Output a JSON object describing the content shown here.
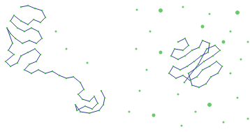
{
  "chart_data": {
    "type": "line",
    "xlim": [
      0,
      358
    ],
    "ylim": [
      0,
      189
    ],
    "grid": false,
    "tick_labels": false,
    "series": [
      {
        "type": "line",
        "color": "#2b3a9c",
        "marker": "circle",
        "line_style": "solid",
        "x": [
          30,
          40,
          50,
          60,
          65,
          58,
          48,
          40,
          30,
          20,
          15,
          25,
          35,
          45,
          55,
          60,
          52,
          42,
          32,
          22,
          15,
          10,
          18,
          12,
          20,
          8,
          15,
          25,
          30,
          40,
          50,
          58,
          52,
          42,
          35,
          45,
          55,
          65,
          75,
          85,
          95,
          105,
          115,
          120,
          112,
          118,
          128,
          135,
          140,
          132,
          122,
          110,
          108,
          115,
          128,
          142,
          148,
          150,
          145
        ],
        "values": [
          179,
          181,
          177,
          174,
          164,
          157,
          161,
          154,
          159,
          167,
          159,
          149,
          144,
          149,
          144,
          134,
          127,
          131,
          127,
          134,
          141,
          149,
          127,
          117,
          111,
          101,
          94,
          99,
          109,
          114,
          119,
          111,
          101,
          97,
          89,
          84,
          89,
          84,
          87,
          81,
          77,
          79,
          71,
          61,
          54,
          47,
          44,
          51,
          41,
          33,
          37,
          31,
          39,
          29,
          27,
          31,
          39,
          49,
          59
        ],
        "colors": [
          "#3fbf3f",
          "#3fbf3f",
          "#3fbf3f",
          "#3fbf3f",
          "#3fbf3f",
          "#3fbf3f",
          "#3fbf3f",
          "#3fbf3f",
          "#3fbf3f",
          "#3fbf3f",
          "#3fbf3f",
          "#3fbf3f",
          "#3fbf3f",
          "#3fbf3f",
          "#3fbf3f",
          "#3fbf3f",
          "#3fbf3f",
          "#3fbf3f",
          "#3fbf3f",
          "#3fbf3f",
          "#3fbf3f",
          "#3fbf3f",
          "#3fbf3f",
          "#3fbf3f",
          "#3fbf3f",
          "#3fbf3f",
          "#3fbf3f",
          "#3fbf3f",
          "#3fbf3f",
          "#3fbf3f",
          "#3fbf3f",
          "#3fbf3f",
          "#3fbf3f",
          "#3fbf3f",
          "#3fbf3f",
          "#3fbf3f",
          "#3fbf3f",
          "#3fbf3f",
          "#3fbf3f",
          "#3fbf3f",
          "#3fbf3f",
          "#3fbf3f",
          "#3fbf3f",
          "#3fbf3f",
          "#3fbf3f",
          "#3fbf3f",
          "#3fbf3f",
          "#3fbf3f",
          "#3fbf3f",
          "#3fbf3f",
          "#3fbf3f",
          "#3fbf3f",
          "#3fbf3f",
          "#3fbf3f",
          "#3fbf3f",
          "#3fbf3f",
          "#3fbf3f",
          "#3fbf3f",
          "#3fbf3f"
        ]
      },
      {
        "type": "line",
        "color": "#2b3a9c",
        "marker": "circle",
        "line_style": "solid",
        "x": [
          255,
          265,
          270,
          262,
          250,
          245,
          255,
          265,
          275,
          285,
          290,
          300,
          298,
          288,
          278,
          268,
          258,
          248,
          242,
          252,
          262,
          272,
          282,
          290,
          300,
          310,
          318,
          312,
          302,
          295,
          285,
          275,
          270,
          280,
          292,
          305,
          315,
          308,
          296,
          284,
          264
        ],
        "values": [
          129,
          134,
          124,
          117,
          119,
          109,
          104,
          109,
          117,
          121,
          131,
          127,
          114,
          109,
          101,
          94,
          89,
          94,
          84,
          77,
          81,
          74,
          79,
          89,
          94,
          101,
          94,
          84,
          79,
          69,
          64,
          67,
          84,
          91,
          101,
          109,
          117,
          124,
          119,
          97,
          71
        ],
        "colors": [
          "#3fbf3f",
          "#3fbf3f",
          "#3fbf3f",
          "#3fbf3f",
          "#3fbf3f",
          "#3fbf3f",
          "#3fbf3f",
          "#3fbf3f",
          "#3fbf3f",
          "#3fbf3f",
          "#3fbf3f",
          "#3fbf3f",
          "#3fbf3f",
          "#3fbf3f",
          "#3fbf3f",
          "#3fbf3f",
          "#3fbf3f",
          "#3fbf3f",
          "#3fbf3f",
          "#3fbf3f",
          "#3fbf3f",
          "#3fbf3f",
          "#3fbf3f",
          "#3fbf3f",
          "#3fbf3f",
          "#3fbf3f",
          "#3fbf3f",
          "#3fbf3f",
          "#3fbf3f",
          "#3fbf3f",
          "#3fbf3f",
          "#3fbf3f",
          "#3fbf3f",
          "#3fbf3f",
          "#3fbf3f",
          "#3fbf3f",
          "#3fbf3f",
          "#3fbf3f",
          "#3fbf3f",
          "#3fbf3f",
          "#3fbf3f"
        ]
      },
      {
        "type": "scatter",
        "color": "#3fbf3f",
        "marker": "circle",
        "x": [
          230,
          196,
          262,
          300,
          340,
          215,
          290,
          330,
          195,
          355,
          230,
          320,
          345,
          210,
          330,
          255,
          200,
          300,
          280,
          340,
          220,
          320,
          260,
          355,
          185,
          95,
          80,
          125
        ],
        "values": [
          174,
          175,
          179,
          169,
          171,
          144,
          151,
          144,
          119,
          129,
          114,
          129,
          104,
          89,
          84,
          54,
          59,
          39,
          29,
          49,
          24,
          14,
          9,
          19,
          29,
          119,
          144,
          99
        ],
        "size": [
          6,
          3,
          3,
          3,
          6,
          3,
          5,
          3,
          3,
          3,
          5,
          5,
          3,
          3,
          3,
          3,
          3,
          6,
          3,
          3,
          5,
          3,
          3,
          3,
          3,
          3,
          3,
          3
        ]
      }
    ]
  }
}
